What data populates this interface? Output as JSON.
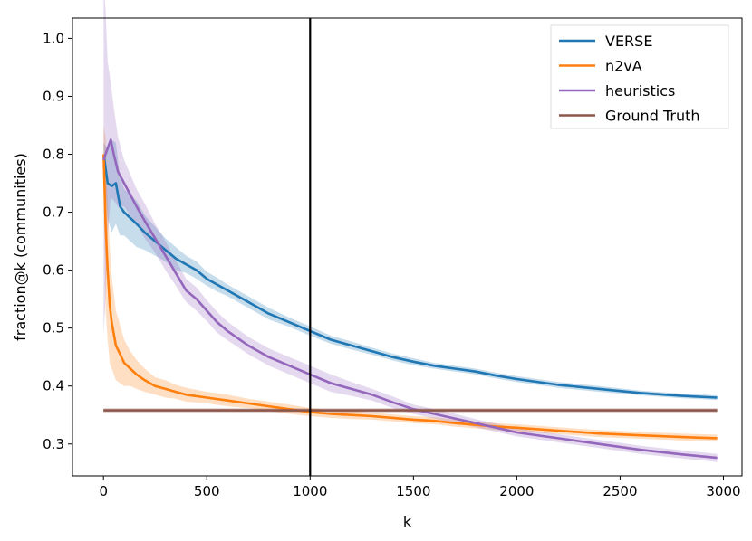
{
  "chart_data": {
    "type": "line",
    "title": "",
    "xlabel": "k",
    "ylabel": "fraction@k (communities)",
    "xlim": [
      -150,
      3090
    ],
    "ylim": [
      0.245,
      1.035
    ],
    "xticks": [
      0,
      500,
      1000,
      1500,
      2000,
      2500,
      3000
    ],
    "xtick_labels": [
      "0",
      "500",
      "1000",
      "1500",
      "2000",
      "2500",
      "3000"
    ],
    "yticks": [
      0.3,
      0.4,
      0.5,
      0.6,
      0.7,
      0.8,
      0.9,
      1.0
    ],
    "ytick_labels": [
      "0.3",
      "0.4",
      "0.5",
      "0.6",
      "0.7",
      "0.8",
      "0.9",
      "1.0"
    ],
    "grid": false,
    "legend_position": "top-right",
    "vertical_line": {
      "x": 1000,
      "color": "#000000"
    },
    "series": [
      {
        "name": "VERSE",
        "color": "#1f77b4",
        "x": [
          1,
          20,
          40,
          60,
          80,
          100,
          130,
          160,
          200,
          250,
          300,
          350,
          400,
          450,
          500,
          550,
          600,
          700,
          800,
          900,
          1000,
          1100,
          1200,
          1300,
          1400,
          1500,
          1600,
          1700,
          1800,
          1900,
          2000,
          2200,
          2400,
          2600,
          2800,
          2970
        ],
        "y": [
          0.8,
          0.75,
          0.745,
          0.75,
          0.71,
          0.7,
          0.69,
          0.68,
          0.665,
          0.65,
          0.635,
          0.62,
          0.61,
          0.6,
          0.585,
          0.575,
          0.565,
          0.545,
          0.525,
          0.51,
          0.495,
          0.48,
          0.47,
          0.46,
          0.45,
          0.442,
          0.435,
          0.43,
          0.425,
          0.418,
          0.412,
          0.402,
          0.395,
          0.388,
          0.383,
          0.38
        ],
        "band": [
          0.02,
          0.06,
          0.08,
          0.07,
          0.05,
          0.04,
          0.04,
          0.04,
          0.03,
          0.025,
          0.02,
          0.02,
          0.015,
          0.015,
          0.012,
          0.012,
          0.01,
          0.01,
          0.01,
          0.008,
          0.008,
          0.007,
          0.007,
          0.006,
          0.006,
          0.006,
          0.005,
          0.005,
          0.005,
          0.005,
          0.005,
          0.005,
          0.005,
          0.004,
          0.004,
          0.004
        ]
      },
      {
        "name": "n2vA",
        "color": "#ff7f0e",
        "x": [
          1,
          10,
          20,
          30,
          40,
          50,
          60,
          80,
          100,
          130,
          160,
          200,
          250,
          300,
          350,
          400,
          500,
          600,
          700,
          800,
          900,
          1000,
          1100,
          1200,
          1300,
          1400,
          1500,
          1600,
          1700,
          1800,
          1900,
          2000,
          2200,
          2400,
          2600,
          2800,
          2970
        ],
        "y": [
          0.8,
          0.68,
          0.6,
          0.54,
          0.51,
          0.49,
          0.47,
          0.455,
          0.44,
          0.43,
          0.42,
          0.41,
          0.4,
          0.395,
          0.39,
          0.385,
          0.38,
          0.375,
          0.37,
          0.365,
          0.36,
          0.355,
          0.352,
          0.35,
          0.348,
          0.345,
          0.342,
          0.34,
          0.336,
          0.333,
          0.33,
          0.328,
          0.323,
          0.318,
          0.315,
          0.312,
          0.31
        ],
        "band": [
          0.05,
          0.15,
          0.12,
          0.1,
          0.08,
          0.07,
          0.06,
          0.05,
          0.04,
          0.03,
          0.025,
          0.02,
          0.015,
          0.015,
          0.012,
          0.012,
          0.01,
          0.01,
          0.008,
          0.008,
          0.008,
          0.007,
          0.007,
          0.007,
          0.006,
          0.006,
          0.006,
          0.006,
          0.006,
          0.006,
          0.006,
          0.006,
          0.006,
          0.006,
          0.006,
          0.006,
          0.006
        ]
      },
      {
        "name": "heuristics",
        "color": "#9467bd",
        "x": [
          1,
          10,
          20,
          35,
          50,
          70,
          100,
          130,
          160,
          200,
          250,
          300,
          350,
          400,
          450,
          500,
          550,
          600,
          700,
          800,
          900,
          1000,
          1100,
          1200,
          1300,
          1400,
          1500,
          1600,
          1700,
          1800,
          1900,
          2000,
          2200,
          2400,
          2600,
          2800,
          2970
        ],
        "y": [
          0.79,
          0.8,
          0.81,
          0.825,
          0.8,
          0.77,
          0.75,
          0.73,
          0.71,
          0.685,
          0.655,
          0.625,
          0.595,
          0.565,
          0.55,
          0.53,
          0.51,
          0.495,
          0.47,
          0.45,
          0.435,
          0.42,
          0.405,
          0.395,
          0.385,
          0.372,
          0.36,
          0.352,
          0.344,
          0.336,
          0.328,
          0.32,
          0.31,
          0.3,
          0.29,
          0.282,
          0.276
        ],
        "band": [
          0.3,
          0.25,
          0.15,
          0.1,
          0.08,
          0.06,
          0.04,
          0.035,
          0.03,
          0.03,
          0.025,
          0.025,
          0.022,
          0.02,
          0.02,
          0.018,
          0.018,
          0.016,
          0.015,
          0.015,
          0.015,
          0.015,
          0.015,
          0.012,
          0.01,
          0.01,
          0.008,
          0.008,
          0.008,
          0.007,
          0.007,
          0.007,
          0.007,
          0.007,
          0.007,
          0.007,
          0.007
        ]
      },
      {
        "name": "Ground Truth",
        "color": "#8c564b",
        "x": [
          0,
          2970
        ],
        "y": [
          0.358,
          0.358
        ],
        "band": [
          0.004,
          0.004
        ]
      }
    ]
  }
}
